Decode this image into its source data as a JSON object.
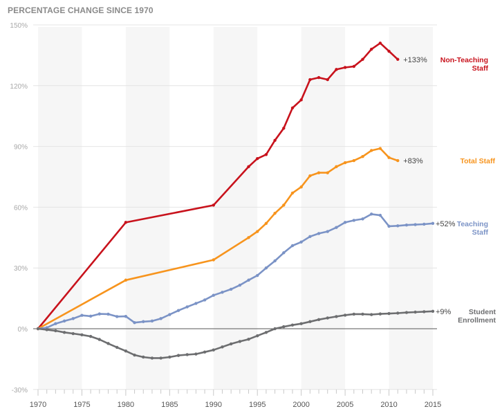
{
  "chart_data": {
    "type": "line",
    "title": "PERCENTAGE CHANGE SINCE 1970",
    "xlabel": "",
    "ylabel": "",
    "xlim": [
      1970,
      2015
    ],
    "ylim": [
      -30,
      150
    ],
    "yticks": [
      -30,
      0,
      30,
      60,
      90,
      120,
      150
    ],
    "ytick_labels": [
      "-30%",
      "0%",
      "30%",
      "60%",
      "90%",
      "120%",
      "150%"
    ],
    "xticks": [
      1970,
      1975,
      1980,
      1985,
      1990,
      1995,
      2000,
      2005,
      2010,
      2015
    ],
    "xtick_labels": [
      "1970",
      "1975",
      "1980",
      "1985",
      "1990",
      "1995",
      "2000",
      "2005",
      "2010",
      "2015"
    ],
    "grid": true,
    "shaded_bands": [
      [
        1970,
        1975
      ],
      [
        1980,
        1985
      ],
      [
        1990,
        1995
      ],
      [
        2000,
        2005
      ],
      [
        2010,
        2015
      ]
    ],
    "series": [
      {
        "name": "Non-Teaching Staff",
        "label_lines": [
          "Non-Teaching",
          "Staff"
        ],
        "end_label": "+133%",
        "color": "#c8121c",
        "x": [
          1970,
          1980,
          1990,
          1994,
          1995,
          1996,
          1997,
          1998,
          1999,
          2000,
          2001,
          2002,
          2003,
          2004,
          2005,
          2006,
          2007,
          2008,
          2009,
          2010,
          2011
        ],
        "values": [
          0,
          52.5,
          61,
          80,
          84,
          86,
          93,
          99,
          109,
          113,
          123,
          124,
          123,
          128,
          129,
          129.5,
          133,
          138,
          141,
          137,
          133
        ]
      },
      {
        "name": "Total Staff",
        "label_lines": [
          "Total Staff"
        ],
        "end_label": "+83%",
        "color": "#f7941d",
        "x": [
          1970,
          1980,
          1990,
          1994,
          1995,
          1996,
          1997,
          1998,
          1999,
          2000,
          2001,
          2002,
          2003,
          2004,
          2005,
          2006,
          2007,
          2008,
          2009,
          2010,
          2011
        ],
        "values": [
          0,
          24,
          34,
          45,
          48,
          52,
          57,
          61,
          67,
          70,
          75.5,
          77,
          77,
          80,
          82,
          83,
          85,
          88,
          89,
          84.5,
          83
        ]
      },
      {
        "name": "Teaching Staff",
        "label_lines": [
          "Teaching",
          "Staff"
        ],
        "end_label": "+52%",
        "color": "#7b93c6",
        "x": [
          1970,
          1971,
          1972,
          1973,
          1974,
          1975,
          1976,
          1977,
          1978,
          1979,
          1980,
          1981,
          1982,
          1983,
          1984,
          1985,
          1986,
          1987,
          1988,
          1989,
          1990,
          1991,
          1992,
          1993,
          1994,
          1995,
          1996,
          1997,
          1998,
          1999,
          2000,
          2001,
          2002,
          2003,
          2004,
          2005,
          2006,
          2007,
          2008,
          2009,
          2010,
          2011,
          2012,
          2013,
          2014,
          2015
        ],
        "values": [
          0,
          0.5,
          2.5,
          3.8,
          5,
          6.6,
          6.2,
          7.3,
          7.2,
          6,
          6.1,
          3,
          3.5,
          3.8,
          5,
          7,
          9,
          10.8,
          12.5,
          14.2,
          16.5,
          18,
          19.5,
          21.5,
          24,
          26.3,
          30,
          33.5,
          37.5,
          41,
          42.8,
          45.5,
          47,
          48,
          50,
          52.5,
          53.5,
          54.2,
          56.6,
          56,
          50.6,
          50.8,
          51.2,
          51.4,
          51.6,
          52
        ]
      },
      {
        "name": "Student Enrollment",
        "label_lines": [
          "Student",
          "Enrollment"
        ],
        "end_label": "+9%",
        "color": "#6d6e70",
        "x": [
          1970,
          1971,
          1972,
          1973,
          1974,
          1975,
          1976,
          1977,
          1978,
          1979,
          1980,
          1981,
          1982,
          1983,
          1984,
          1985,
          1986,
          1987,
          1988,
          1989,
          1990,
          1991,
          1992,
          1993,
          1994,
          1995,
          1996,
          1997,
          1998,
          1999,
          2000,
          2001,
          2002,
          2003,
          2004,
          2005,
          2006,
          2007,
          2008,
          2009,
          2010,
          2011,
          2012,
          2013,
          2014,
          2015
        ],
        "values": [
          0,
          -0.5,
          -1,
          -1.8,
          -2.4,
          -3,
          -3.8,
          -5.3,
          -7.3,
          -9.2,
          -11,
          -13,
          -14,
          -14.5,
          -14.5,
          -14,
          -13.2,
          -12.8,
          -12.5,
          -11.5,
          -10.5,
          -9,
          -7.5,
          -6.3,
          -5.2,
          -3.5,
          -1.8,
          0,
          1,
          1.8,
          2.5,
          3.5,
          4.5,
          5.3,
          6,
          6.7,
          7.2,
          7.2,
          7,
          7.3,
          7.5,
          7.7,
          8,
          8.2,
          8.4,
          8.6
        ]
      }
    ]
  }
}
